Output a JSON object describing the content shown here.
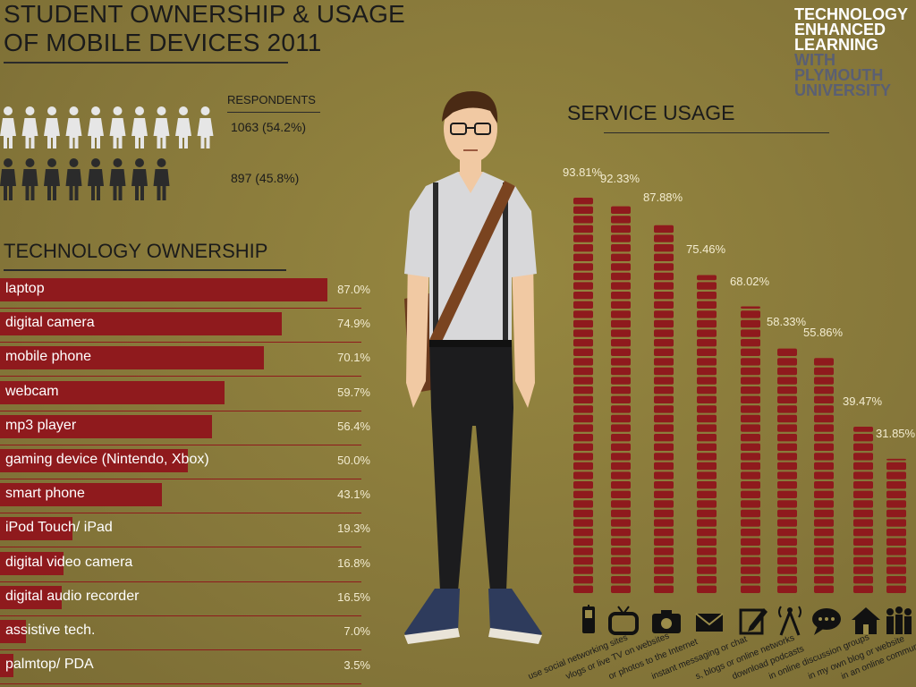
{
  "header": {
    "title_line1": "STUDENT OWNERSHIP & USAGE",
    "title_line2": "OF MOBILE DEVICES 2011"
  },
  "brand": {
    "line1": "TECHNOLOGY",
    "line2": "ENHANCED",
    "line3": "LEARNING",
    "line4": "WITH",
    "line5": "PLYMOUTH",
    "line6": "UNIVERSITY"
  },
  "respondents": {
    "label": "RESPONDENTS",
    "female": "1063 (54.2%)",
    "male": "897 (45.8%)",
    "female_icons": 10,
    "male_icons": 8,
    "female_color": "#e6e6e6",
    "male_color": "#2b2b2b"
  },
  "colors": {
    "bar": "#8f1a1d",
    "value_text": "#f3ecd0",
    "heading": "#1b1b1b"
  },
  "chart_data": [
    {
      "type": "bar",
      "title": "TECHNOLOGY OWNERSHIP",
      "orientation": "horizontal",
      "unit": "%",
      "categories": [
        "laptop",
        "digital camera",
        "mobile phone",
        "webcam",
        "mp3 player",
        "gaming device (Nintendo, Xbox)",
        "smart phone",
        "iPod Touch/ iPad",
        "digital video camera",
        "digital audio recorder",
        "assistive tech.",
        "palmtop/ PDA"
      ],
      "values": [
        87.0,
        74.9,
        70.1,
        59.7,
        56.4,
        50.0,
        43.1,
        19.3,
        16.8,
        16.5,
        7.0,
        3.5
      ],
      "value_labels": [
        "87.0%",
        "74.9%",
        "70.1%",
        "59.7%",
        "56.4%",
        "50.0%",
        "43.1%",
        "19.3%",
        "16.8%",
        "16.5%",
        "7.0%",
        "3.5%"
      ]
    },
    {
      "type": "bar",
      "title": "SERVICE USAGE",
      "orientation": "vertical",
      "unit": "%",
      "categories": [
        "use social networking sites",
        "watch videos or live TV on websites",
        "upload photos to the Internet",
        "instant messaging or chat",
        "read wikis, blogs or online networks",
        "download podcasts",
        "take part in online discussion groups",
        "maintain my own blog or website",
        "take part in an online community"
      ],
      "category_labels": [
        "use social networking sites",
        "vlogs or live TV on websites",
        "or photos to the Internet",
        "instant messaging or chat",
        "s, blogs or online networks",
        "download podcasts",
        "in online discussion groups",
        "in my own blog or website",
        "in an online community"
      ],
      "values": [
        93.81,
        92.33,
        87.88,
        75.46,
        68.02,
        58.33,
        55.86,
        39.47,
        31.85
      ],
      "value_labels": [
        "93.81%",
        "92.33%",
        "87.88%",
        "75.46%",
        "68.02%",
        "58.33%",
        "55.86%",
        "39.47%",
        "31.85%"
      ],
      "icons": [
        "mobile-phone-icon",
        "tv-icon",
        "camera-icon",
        "envelope-icon",
        "pencil-icon",
        "antenna-icon",
        "speech-bubble-icon",
        "house-icon",
        "people-icon"
      ]
    }
  ]
}
